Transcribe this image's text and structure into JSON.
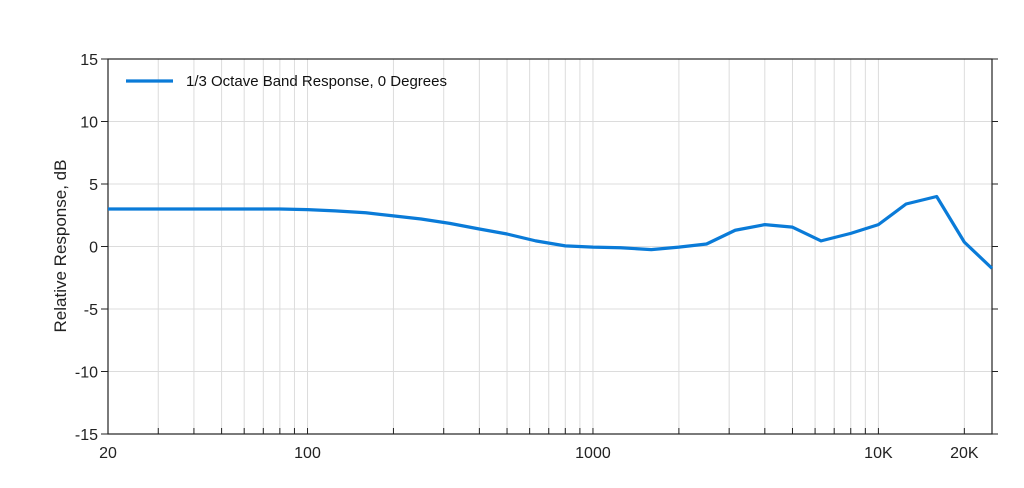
{
  "chart_data": {
    "type": "line",
    "title": "",
    "xlabel": "",
    "ylabel": "Relative Response, dB",
    "x_scale": "log",
    "xlim": [
      20,
      25000
    ],
    "ylim": [
      -15,
      15
    ],
    "grid": true,
    "legend_position": "top-left",
    "line_color": "#0a7bd8",
    "x_ticks": [
      {
        "value": 20,
        "label": "20"
      },
      {
        "value": 100,
        "label": "100"
      },
      {
        "value": 1000,
        "label": "1000"
      },
      {
        "value": 10000,
        "label": "10K"
      },
      {
        "value": 20000,
        "label": "20K"
      }
    ],
    "y_ticks": [
      {
        "value": 15,
        "label": "15"
      },
      {
        "value": 10,
        "label": "10"
      },
      {
        "value": 5,
        "label": "5"
      },
      {
        "value": 0,
        "label": "0"
      },
      {
        "value": -5,
        "label": "-5"
      },
      {
        "value": -10,
        "label": "-10"
      },
      {
        "value": -15,
        "label": "-15"
      }
    ],
    "series": [
      {
        "name": "1/3 Octave Band Response, 0 Degrees",
        "x": [
          20,
          25,
          31.5,
          40,
          50,
          63,
          80,
          100,
          125,
          160,
          200,
          250,
          315,
          400,
          500,
          630,
          800,
          1000,
          1250,
          1600,
          2000,
          2500,
          3150,
          4000,
          5000,
          6300,
          8000,
          10000,
          12500,
          16000,
          20000,
          25000
        ],
        "y": [
          3.0,
          3.0,
          3.0,
          3.0,
          3.0,
          3.0,
          3.0,
          2.95,
          2.85,
          2.7,
          2.45,
          2.2,
          1.85,
          1.4,
          1.0,
          0.45,
          0.05,
          -0.05,
          -0.1,
          -0.25,
          -0.05,
          0.2,
          1.3,
          1.75,
          1.55,
          0.45,
          1.05,
          1.75,
          3.4,
          4.0,
          0.35,
          -1.75
        ]
      }
    ]
  }
}
